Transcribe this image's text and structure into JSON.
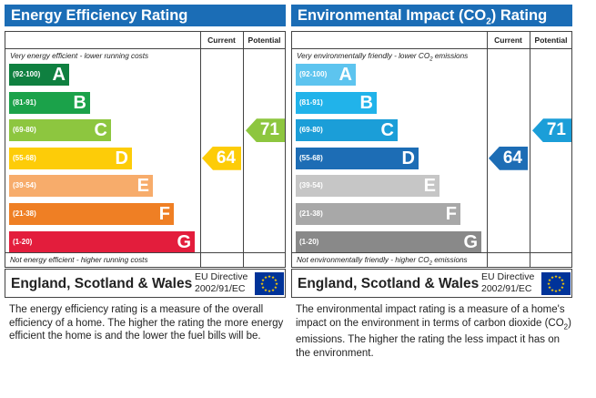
{
  "energy": {
    "title": "Energy Efficiency Rating",
    "col_current": "Current",
    "col_potential": "Potential",
    "top_note": "Very energy efficient - lower running costs",
    "bottom_note": "Not energy efficient - higher running costs",
    "bands": [
      {
        "range": "(92-100)",
        "letter": "A",
        "color": "#0f8040"
      },
      {
        "range": "(81-91)",
        "letter": "B",
        "color": "#1ba24a"
      },
      {
        "range": "(69-80)",
        "letter": "C",
        "color": "#8dc63f"
      },
      {
        "range": "(55-68)",
        "letter": "D",
        "color": "#fdcc08"
      },
      {
        "range": "(39-54)",
        "letter": "E",
        "color": "#f7ac6b"
      },
      {
        "range": "(21-38)",
        "letter": "F",
        "color": "#ef7f24"
      },
      {
        "range": "(1-20)",
        "letter": "G",
        "color": "#e31d3c"
      }
    ],
    "current": {
      "value": "64",
      "color": "#fdcc08"
    },
    "potential": {
      "value": "71",
      "color": "#8dc63f"
    },
    "country": "England, Scotland & Wales",
    "directive_line1": "EU Directive",
    "directive_line2": "2002/91/EC",
    "description": "The energy efficiency rating is a measure of the overall efficiency of a home. The higher the rating the more energy efficient the home is and the lower the fuel bills will be."
  },
  "environment": {
    "title_prefix": "Environmental Impact (CO",
    "title_sub": "2",
    "title_suffix": ") Rating",
    "col_current": "Current",
    "col_potential": "Potential",
    "top_note_prefix": "Very environmentally friendly - lower CO",
    "top_note_sub": "2",
    "top_note_suffix": " emissions",
    "bottom_note_prefix": "Not environmentally friendly - higher CO",
    "bottom_note_sub": "2",
    "bottom_note_suffix": " emissions",
    "bands": [
      {
        "range": "(92-100)",
        "letter": "A",
        "color": "#5dc4ef"
      },
      {
        "range": "(81-91)",
        "letter": "B",
        "color": "#21b3ea"
      },
      {
        "range": "(69-80)",
        "letter": "C",
        "color": "#1b9ed8"
      },
      {
        "range": "(55-68)",
        "letter": "D",
        "color": "#1d6db5"
      },
      {
        "range": "(39-54)",
        "letter": "E",
        "color": "#c6c6c6"
      },
      {
        "range": "(21-38)",
        "letter": "F",
        "color": "#a8a8a8"
      },
      {
        "range": "(1-20)",
        "letter": "G",
        "color": "#898989"
      }
    ],
    "current": {
      "value": "64",
      "color": "#1d6db5"
    },
    "potential": {
      "value": "71",
      "color": "#1b9ed8"
    },
    "country": "England, Scotland & Wales",
    "directive_line1": "EU Directive",
    "directive_line2": "2002/91/EC",
    "description_part1": "The environmental impact rating is a measure of a home's impact on the environment in terms of carbon dioxide (CO",
    "description_sub": "2",
    "description_part2": ") emissions. The higher the rating the less impact it has on the environment."
  }
}
